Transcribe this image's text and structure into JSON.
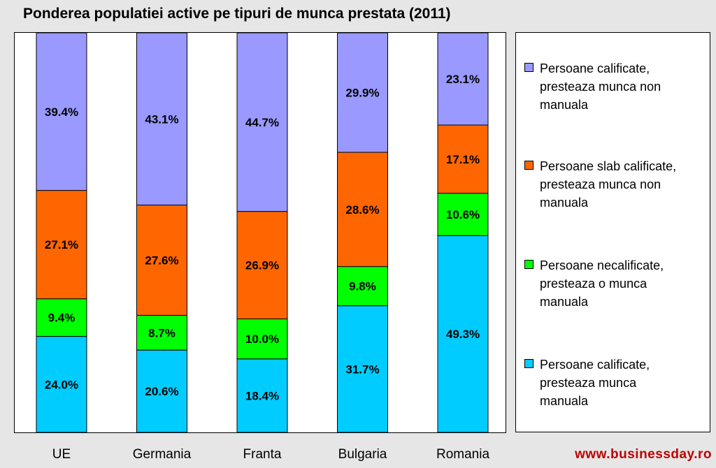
{
  "chart_data": {
    "type": "bar",
    "stacked": true,
    "title": "Ponderea populatiei active pe tipuri de munca prestata (2011)",
    "categories": [
      "UE",
      "Germania",
      "Franta",
      "Bulgaria",
      "Romania"
    ],
    "series": [
      {
        "name": "Persoane calificate, presteaza munca manuala",
        "color": "#00ccff",
        "values": [
          24.0,
          20.6,
          18.4,
          31.7,
          49.3
        ],
        "labels": [
          "24.0%",
          "20.6%",
          "18.4%",
          "31.7%",
          "49.3%"
        ]
      },
      {
        "name": "Persoane necalificate, presteaza o munca manuala",
        "color": "#00ff00",
        "values": [
          9.4,
          8.7,
          10.0,
          9.8,
          10.6
        ],
        "labels": [
          "9.4%",
          "8.7%",
          "10.0%",
          "9.8%",
          "10.6%"
        ]
      },
      {
        "name": "Persoane slab calificate, presteaza munca non manuala",
        "color": "#ff6600",
        "values": [
          27.1,
          27.6,
          26.9,
          28.6,
          17.1
        ],
        "labels": [
          "27.1%",
          "27.6%",
          "26.9%",
          "28.6%",
          "17.1%"
        ]
      },
      {
        "name": "Persoane calificate, presteaza munca non manuala",
        "color": "#9999ff",
        "values": [
          39.4,
          43.1,
          44.7,
          29.9,
          23.1
        ],
        "labels": [
          "39.4%",
          "43.1%",
          "44.7%",
          "29.9%",
          "23.1%"
        ]
      }
    ],
    "ylim": [
      0,
      100
    ],
    "grid": false,
    "legend_position": "right"
  },
  "legend": {
    "items": [
      {
        "label_lines": [
          "Persoane calificate,",
          "presteaza munca non",
          "manuala"
        ],
        "color": "#9999ff"
      },
      {
        "label_lines": [
          "Persoane slab calificate,",
          "presteaza munca non",
          "manuala"
        ],
        "color": "#ff6600"
      },
      {
        "label_lines": [
          "Persoane necalificate,",
          "presteaza o munca",
          "manuala"
        ],
        "color": "#00ff00"
      },
      {
        "label_lines": [
          "Persoane calificate,",
          "presteaza munca",
          "manuala"
        ],
        "color": "#00ccff"
      }
    ]
  },
  "watermark": "www.businessday.ro"
}
